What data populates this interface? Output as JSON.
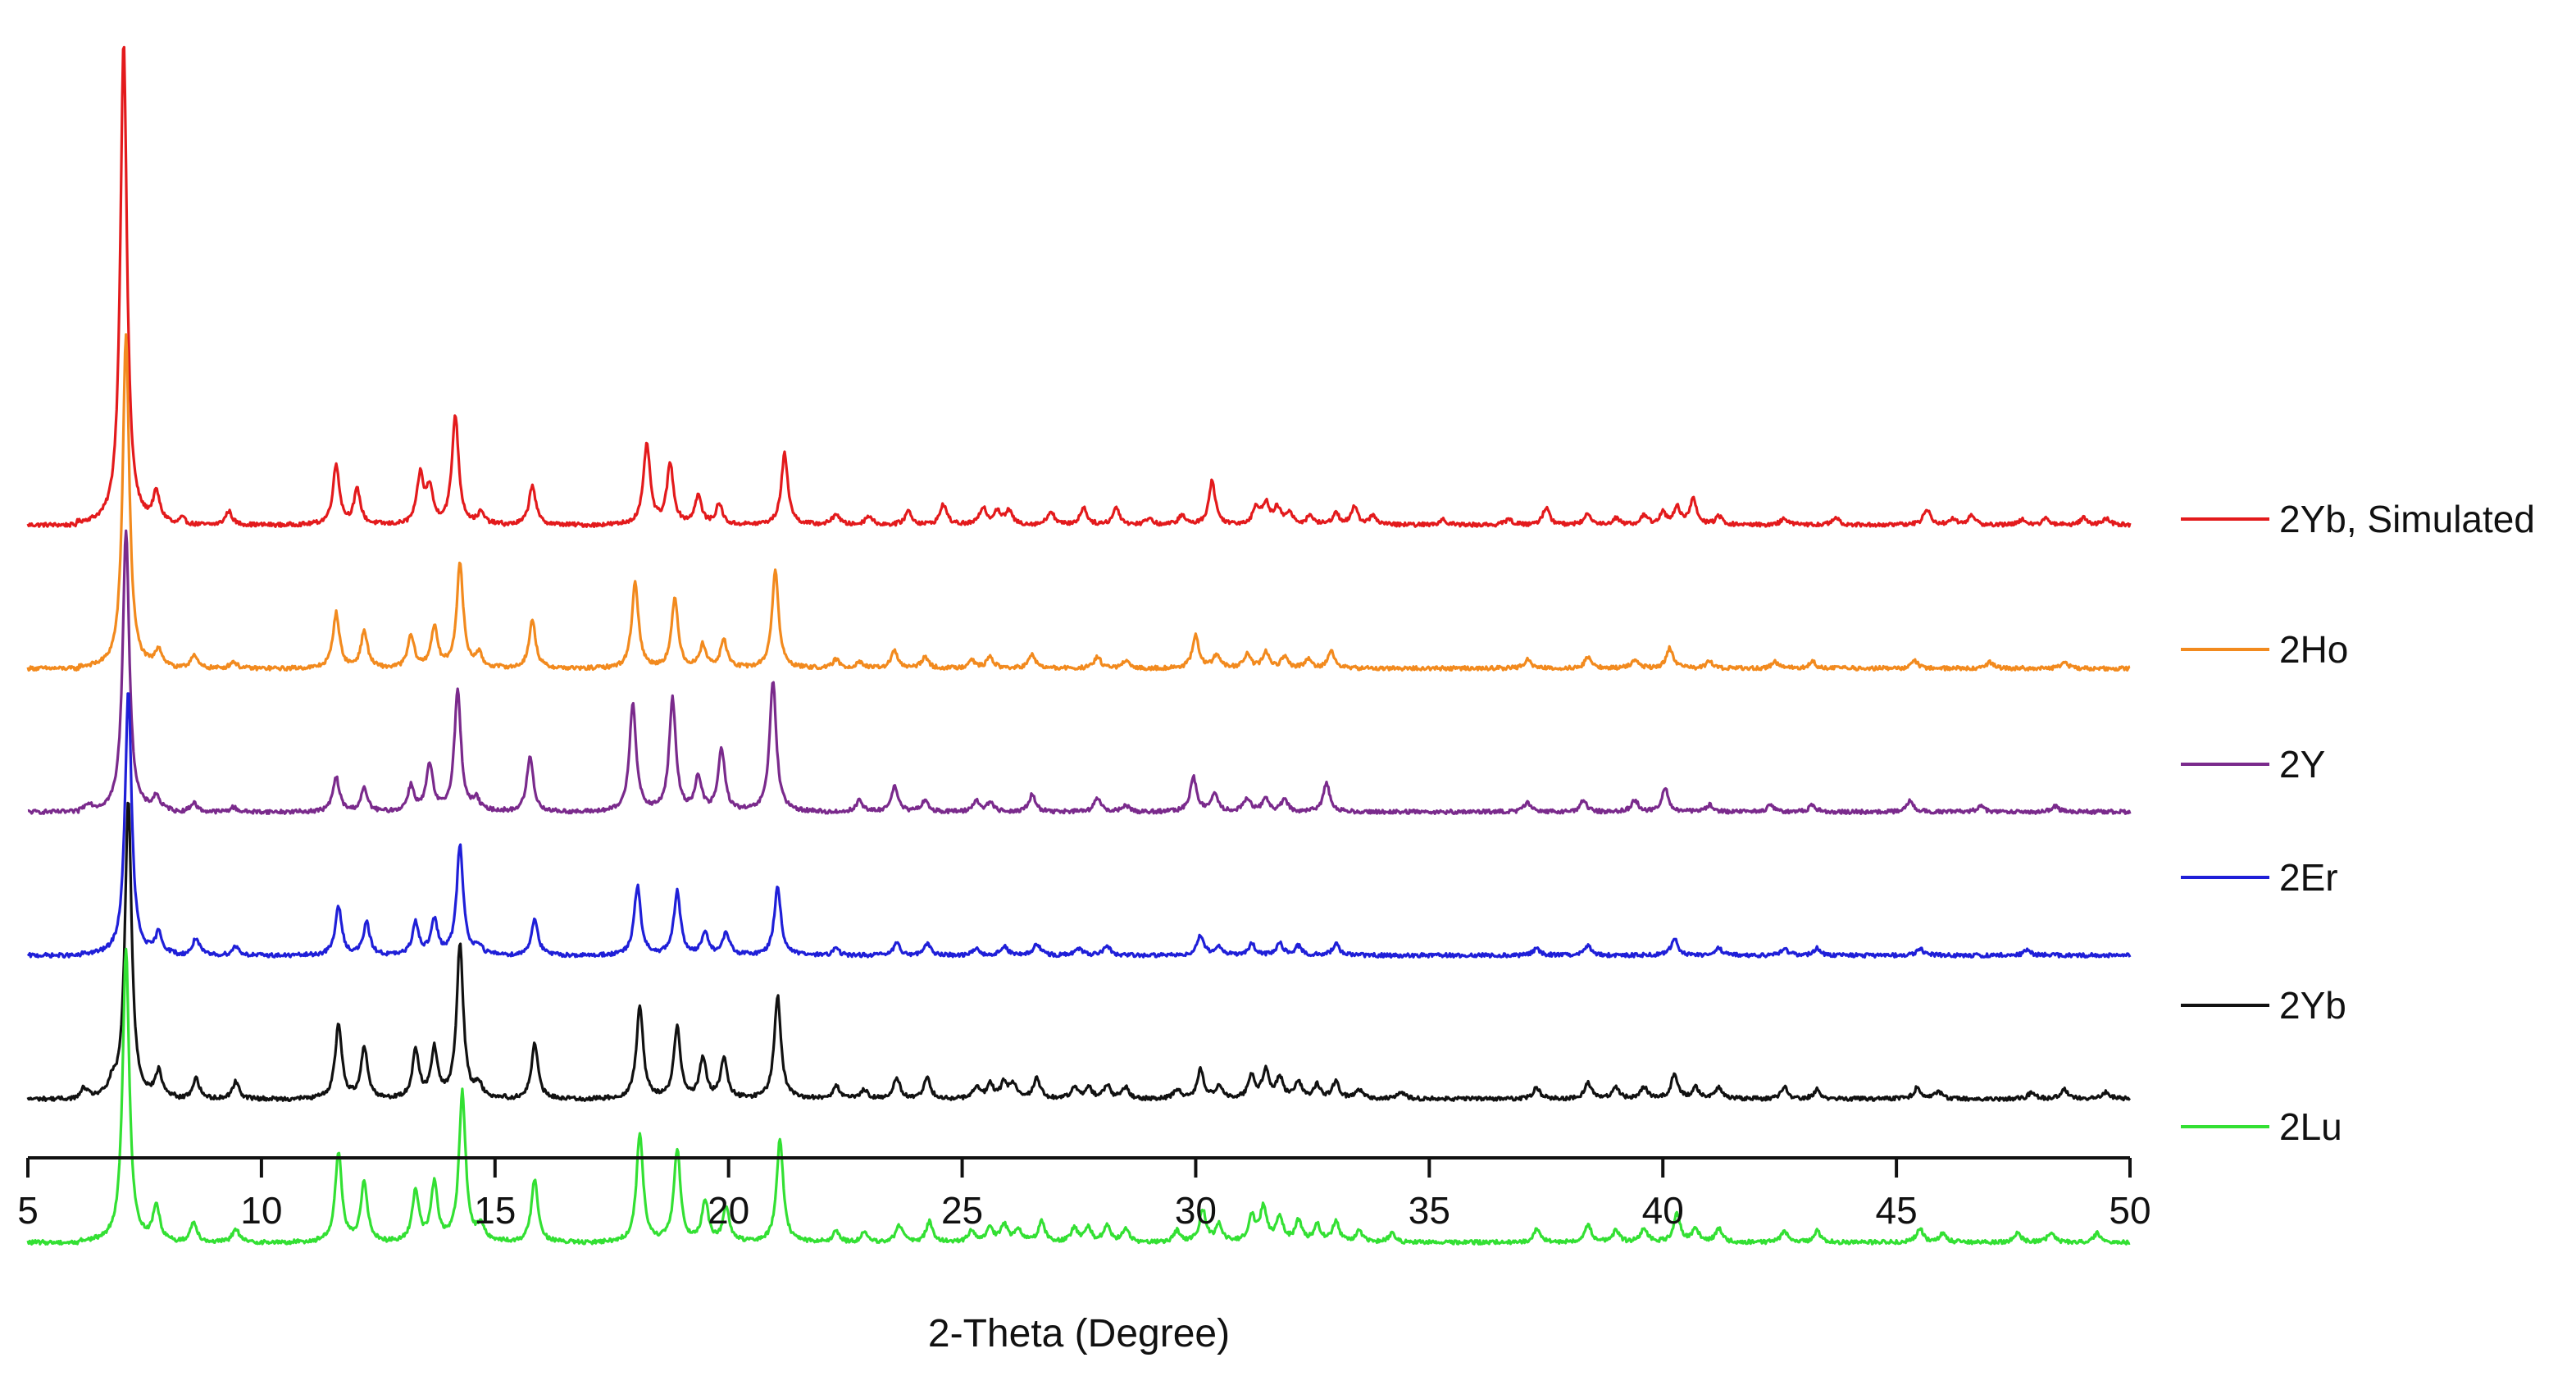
{
  "chart_data": {
    "type": "line",
    "title": "",
    "xlabel": "2-Theta (Degree)",
    "ylabel": "",
    "xlim": [
      5,
      50
    ],
    "x_ticks": [
      5,
      10,
      15,
      20,
      25,
      30,
      35,
      40,
      45,
      50
    ],
    "x_tick_labels": [
      "5",
      "10",
      "15",
      "20",
      "25",
      "30",
      "35",
      "40",
      "45",
      "50"
    ],
    "y_axis_visible": false,
    "grid": false,
    "legend_position": "right, each label beside its trace",
    "series_stacked_with_offsets": true,
    "series": [
      {
        "name": "2Yb, Simulated",
        "color": "#e31a1c",
        "offset": 5.3,
        "peaks": [
          [
            7.05,
            4.2
          ],
          [
            7.75,
            0.25
          ],
          [
            8.3,
            0.06
          ],
          [
            9.3,
            0.12
          ],
          [
            11.6,
            0.52
          ],
          [
            12.05,
            0.3
          ],
          [
            13.4,
            0.42
          ],
          [
            13.6,
            0.3
          ],
          [
            14.15,
            0.95
          ],
          [
            14.7,
            0.1
          ],
          [
            15.8,
            0.35
          ],
          [
            18.25,
            0.7
          ],
          [
            18.75,
            0.52
          ],
          [
            19.35,
            0.25
          ],
          [
            19.8,
            0.18
          ],
          [
            21.2,
            0.62
          ],
          [
            22.3,
            0.1
          ],
          [
            23.0,
            0.08
          ],
          [
            23.85,
            0.12
          ],
          [
            24.6,
            0.18
          ],
          [
            25.45,
            0.15
          ],
          [
            25.75,
            0.12
          ],
          [
            26.0,
            0.12
          ],
          [
            26.9,
            0.12
          ],
          [
            27.6,
            0.15
          ],
          [
            28.3,
            0.15
          ],
          [
            29.0,
            0.06
          ],
          [
            29.7,
            0.08
          ],
          [
            30.35,
            0.38
          ],
          [
            31.3,
            0.15
          ],
          [
            31.5,
            0.18
          ],
          [
            31.75,
            0.14
          ],
          [
            32.0,
            0.1
          ],
          [
            32.45,
            0.08
          ],
          [
            33.0,
            0.1
          ],
          [
            33.4,
            0.15
          ],
          [
            33.8,
            0.08
          ],
          [
            35.3,
            0.05
          ],
          [
            36.7,
            0.05
          ],
          [
            37.5,
            0.15
          ],
          [
            38.4,
            0.1
          ],
          [
            39.0,
            0.06
          ],
          [
            39.6,
            0.08
          ],
          [
            40.0,
            0.1
          ],
          [
            40.3,
            0.15
          ],
          [
            40.65,
            0.22
          ],
          [
            41.2,
            0.07
          ],
          [
            42.6,
            0.06
          ],
          [
            43.7,
            0.06
          ],
          [
            45.65,
            0.14
          ],
          [
            46.2,
            0.05
          ],
          [
            46.6,
            0.08
          ],
          [
            47.7,
            0.05
          ],
          [
            48.2,
            0.05
          ],
          [
            49.0,
            0.06
          ],
          [
            49.5,
            0.05
          ]
        ]
      },
      {
        "name": "2Ho",
        "color": "#f28a1e",
        "offset": 4.05,
        "peaks": [
          [
            7.1,
            2.9
          ],
          [
            7.8,
            0.15
          ],
          [
            8.55,
            0.12
          ],
          [
            9.4,
            0.06
          ],
          [
            11.6,
            0.48
          ],
          [
            12.2,
            0.32
          ],
          [
            13.2,
            0.28
          ],
          [
            13.7,
            0.35
          ],
          [
            14.25,
            0.9
          ],
          [
            14.65,
            0.12
          ],
          [
            15.8,
            0.42
          ],
          [
            18.0,
            0.75
          ],
          [
            18.85,
            0.6
          ],
          [
            19.45,
            0.2
          ],
          [
            19.9,
            0.25
          ],
          [
            21.0,
            0.85
          ],
          [
            22.3,
            0.08
          ],
          [
            22.8,
            0.06
          ],
          [
            23.55,
            0.15
          ],
          [
            24.2,
            0.1
          ],
          [
            25.2,
            0.08
          ],
          [
            25.6,
            0.1
          ],
          [
            26.5,
            0.12
          ],
          [
            27.9,
            0.1
          ],
          [
            28.5,
            0.06
          ],
          [
            30.0,
            0.28
          ],
          [
            30.45,
            0.12
          ],
          [
            31.1,
            0.12
          ],
          [
            31.5,
            0.14
          ],
          [
            31.9,
            0.1
          ],
          [
            32.4,
            0.08
          ],
          [
            32.9,
            0.15
          ],
          [
            37.1,
            0.08
          ],
          [
            38.4,
            0.1
          ],
          [
            39.4,
            0.08
          ],
          [
            40.15,
            0.18
          ],
          [
            41.0,
            0.06
          ],
          [
            42.4,
            0.06
          ],
          [
            43.2,
            0.06
          ],
          [
            45.4,
            0.06
          ],
          [
            47.0,
            0.05
          ],
          [
            48.6,
            0.05
          ]
        ]
      },
      {
        "name": "2Y",
        "color": "#7a2a8c",
        "offset": 2.8,
        "peaks": [
          [
            6.3,
            0.06
          ],
          [
            7.1,
            2.45
          ],
          [
            7.75,
            0.12
          ],
          [
            8.55,
            0.08
          ],
          [
            9.4,
            0.04
          ],
          [
            11.6,
            0.3
          ],
          [
            12.2,
            0.2
          ],
          [
            13.2,
            0.22
          ],
          [
            13.6,
            0.4
          ],
          [
            14.2,
            1.05
          ],
          [
            14.6,
            0.1
          ],
          [
            15.75,
            0.48
          ],
          [
            17.95,
            0.95
          ],
          [
            18.8,
            0.98
          ],
          [
            19.35,
            0.3
          ],
          [
            19.85,
            0.55
          ],
          [
            20.95,
            1.15
          ],
          [
            22.8,
            0.1
          ],
          [
            23.55,
            0.22
          ],
          [
            24.2,
            0.1
          ],
          [
            25.3,
            0.1
          ],
          [
            25.6,
            0.08
          ],
          [
            26.5,
            0.15
          ],
          [
            27.9,
            0.12
          ],
          [
            28.5,
            0.06
          ],
          [
            29.95,
            0.3
          ],
          [
            30.4,
            0.15
          ],
          [
            31.1,
            0.12
          ],
          [
            31.5,
            0.12
          ],
          [
            31.9,
            0.1
          ],
          [
            32.8,
            0.25
          ],
          [
            37.1,
            0.08
          ],
          [
            38.3,
            0.1
          ],
          [
            39.4,
            0.1
          ],
          [
            40.05,
            0.2
          ],
          [
            41.0,
            0.06
          ],
          [
            42.3,
            0.06
          ],
          [
            43.2,
            0.06
          ],
          [
            45.3,
            0.1
          ],
          [
            46.8,
            0.05
          ],
          [
            48.4,
            0.05
          ]
        ]
      },
      {
        "name": "2Er",
        "color": "#1f1fd8",
        "offset": 1.55,
        "peaks": [
          [
            7.15,
            2.3
          ],
          [
            7.8,
            0.18
          ],
          [
            8.6,
            0.15
          ],
          [
            9.45,
            0.08
          ],
          [
            11.65,
            0.42
          ],
          [
            12.25,
            0.28
          ],
          [
            13.3,
            0.28
          ],
          [
            13.7,
            0.3
          ],
          [
            14.25,
            0.95
          ],
          [
            14.65,
            0.08
          ],
          [
            15.85,
            0.32
          ],
          [
            18.05,
            0.6
          ],
          [
            18.9,
            0.55
          ],
          [
            19.5,
            0.2
          ],
          [
            19.95,
            0.2
          ],
          [
            21.05,
            0.6
          ],
          [
            22.3,
            0.06
          ],
          [
            23.6,
            0.1
          ],
          [
            24.25,
            0.1
          ],
          [
            25.3,
            0.06
          ],
          [
            25.9,
            0.08
          ],
          [
            26.6,
            0.1
          ],
          [
            27.5,
            0.06
          ],
          [
            28.1,
            0.08
          ],
          [
            30.1,
            0.18
          ],
          [
            30.5,
            0.08
          ],
          [
            31.2,
            0.1
          ],
          [
            31.8,
            0.1
          ],
          [
            32.2,
            0.08
          ],
          [
            33.0,
            0.1
          ],
          [
            37.3,
            0.06
          ],
          [
            38.4,
            0.08
          ],
          [
            40.25,
            0.15
          ],
          [
            41.2,
            0.06
          ],
          [
            42.6,
            0.06
          ],
          [
            43.3,
            0.06
          ],
          [
            45.5,
            0.06
          ],
          [
            47.8,
            0.05
          ]
        ]
      },
      {
        "name": "2Yb",
        "color": "#111111",
        "offset": 0.3,
        "peaks": [
          [
            6.2,
            0.08
          ],
          [
            6.8,
            0.1
          ],
          [
            7.15,
            2.6
          ],
          [
            7.8,
            0.22
          ],
          [
            8.6,
            0.18
          ],
          [
            9.45,
            0.15
          ],
          [
            11.65,
            0.65
          ],
          [
            12.2,
            0.45
          ],
          [
            13.3,
            0.42
          ],
          [
            13.7,
            0.42
          ],
          [
            14.25,
            1.35
          ],
          [
            14.65,
            0.12
          ],
          [
            15.85,
            0.48
          ],
          [
            18.1,
            0.82
          ],
          [
            18.9,
            0.62
          ],
          [
            19.45,
            0.35
          ],
          [
            19.9,
            0.35
          ],
          [
            21.05,
            0.9
          ],
          [
            22.3,
            0.12
          ],
          [
            22.9,
            0.08
          ],
          [
            23.6,
            0.18
          ],
          [
            24.25,
            0.18
          ],
          [
            25.3,
            0.1
          ],
          [
            25.6,
            0.12
          ],
          [
            25.9,
            0.14
          ],
          [
            26.1,
            0.12
          ],
          [
            26.6,
            0.18
          ],
          [
            27.4,
            0.1
          ],
          [
            27.7,
            0.1
          ],
          [
            28.1,
            0.12
          ],
          [
            28.5,
            0.1
          ],
          [
            29.6,
            0.08
          ],
          [
            30.1,
            0.25
          ],
          [
            30.5,
            0.12
          ],
          [
            31.2,
            0.2
          ],
          [
            31.5,
            0.25
          ],
          [
            31.8,
            0.18
          ],
          [
            32.2,
            0.14
          ],
          [
            32.6,
            0.12
          ],
          [
            33.0,
            0.15
          ],
          [
            33.5,
            0.08
          ],
          [
            34.4,
            0.06
          ],
          [
            37.3,
            0.1
          ],
          [
            38.4,
            0.14
          ],
          [
            39.0,
            0.1
          ],
          [
            39.6,
            0.1
          ],
          [
            40.25,
            0.22
          ],
          [
            40.7,
            0.1
          ],
          [
            41.2,
            0.1
          ],
          [
            42.6,
            0.1
          ],
          [
            43.3,
            0.08
          ],
          [
            45.45,
            0.1
          ],
          [
            45.9,
            0.06
          ],
          [
            47.9,
            0.06
          ],
          [
            48.6,
            0.08
          ],
          [
            49.5,
            0.06
          ]
        ]
      },
      {
        "name": "2Lu",
        "color": "#33e033",
        "offset": -0.95,
        "peaks": [
          [
            7.1,
            2.55
          ],
          [
            7.75,
            0.3
          ],
          [
            8.55,
            0.18
          ],
          [
            9.45,
            0.12
          ],
          [
            11.65,
            0.78
          ],
          [
            12.2,
            0.52
          ],
          [
            13.3,
            0.45
          ],
          [
            13.7,
            0.5
          ],
          [
            14.3,
            1.3
          ],
          [
            14.7,
            0.15
          ],
          [
            15.85,
            0.55
          ],
          [
            18.1,
            0.95
          ],
          [
            18.9,
            0.8
          ],
          [
            19.5,
            0.35
          ],
          [
            19.95,
            0.3
          ],
          [
            21.1,
            0.9
          ],
          [
            22.3,
            0.1
          ],
          [
            22.9,
            0.08
          ],
          [
            23.65,
            0.15
          ],
          [
            24.3,
            0.18
          ],
          [
            25.2,
            0.1
          ],
          [
            25.6,
            0.12
          ],
          [
            25.9,
            0.15
          ],
          [
            26.2,
            0.12
          ],
          [
            26.7,
            0.18
          ],
          [
            27.4,
            0.12
          ],
          [
            27.7,
            0.12
          ],
          [
            28.1,
            0.15
          ],
          [
            28.5,
            0.12
          ],
          [
            29.6,
            0.1
          ],
          [
            30.15,
            0.28
          ],
          [
            30.5,
            0.15
          ],
          [
            31.2,
            0.22
          ],
          [
            31.45,
            0.3
          ],
          [
            31.8,
            0.22
          ],
          [
            32.2,
            0.18
          ],
          [
            32.6,
            0.15
          ],
          [
            33.0,
            0.18
          ],
          [
            33.5,
            0.1
          ],
          [
            34.2,
            0.08
          ],
          [
            37.3,
            0.12
          ],
          [
            38.4,
            0.15
          ],
          [
            39.0,
            0.1
          ],
          [
            39.6,
            0.12
          ],
          [
            40.3,
            0.25
          ],
          [
            40.7,
            0.12
          ],
          [
            41.2,
            0.12
          ],
          [
            42.6,
            0.1
          ],
          [
            43.3,
            0.1
          ],
          [
            45.5,
            0.12
          ],
          [
            46.0,
            0.08
          ],
          [
            47.6,
            0.08
          ],
          [
            48.3,
            0.08
          ],
          [
            49.3,
            0.08
          ]
        ]
      }
    ]
  }
}
